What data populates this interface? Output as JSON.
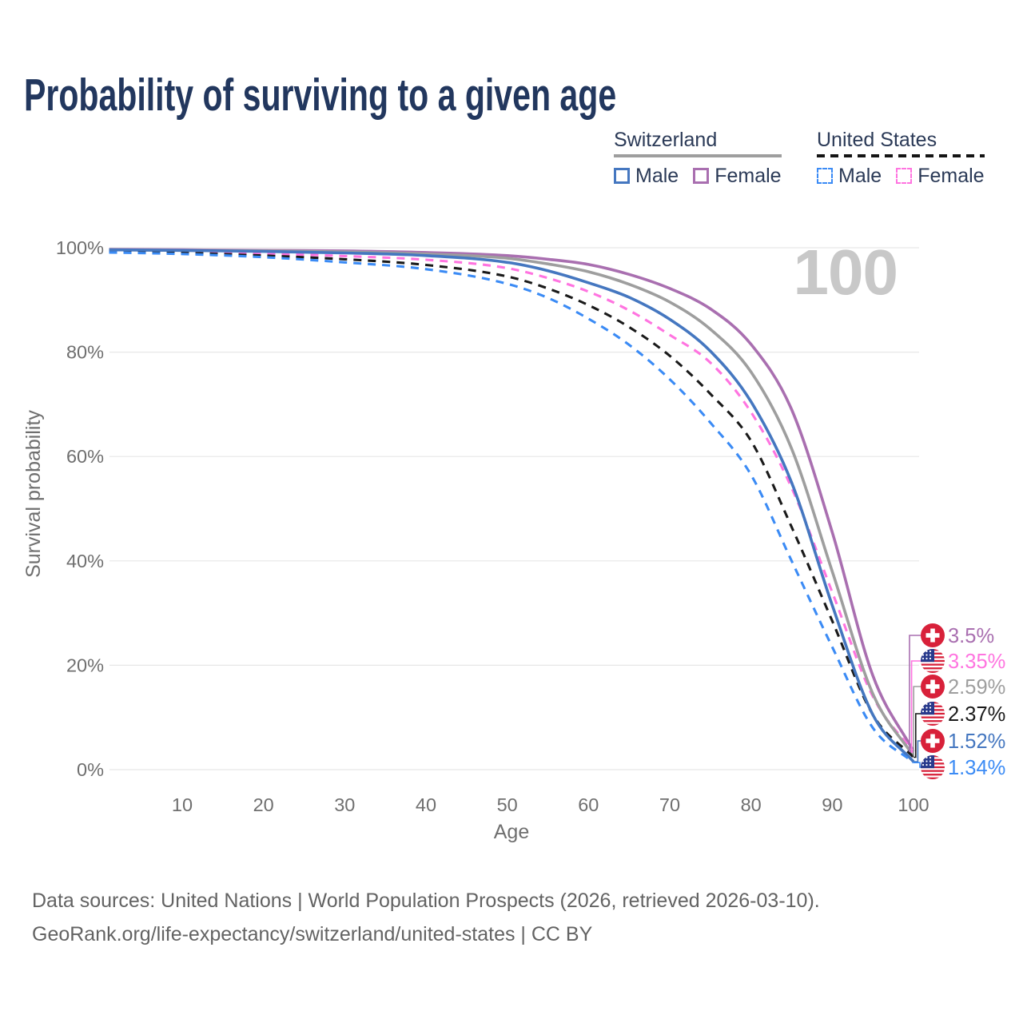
{
  "title": "Probability of surviving to a given age",
  "watermark": "100",
  "legend": {
    "groups": [
      {
        "label": "Switzerland",
        "line_style": "solid",
        "line_color": "#9e9e9e",
        "items": [
          {
            "label": "Male",
            "color": "#4577c0",
            "style": "solid"
          },
          {
            "label": "Female",
            "color": "#a96fb0",
            "style": "solid"
          }
        ]
      },
      {
        "label": "United States",
        "line_style": "dashed",
        "line_color": "#141414",
        "items": [
          {
            "label": "Male",
            "color": "#3b8bf5",
            "style": "dashed"
          },
          {
            "label": "Female",
            "color": "#ff74e0",
            "style": "dashed"
          }
        ]
      }
    ]
  },
  "chart_data": {
    "type": "line",
    "title": "Probability of surviving to a given age",
    "xlabel": "Age",
    "ylabel": "Survival probability",
    "xlim": [
      1,
      100
    ],
    "ylim": [
      0,
      100
    ],
    "grid": "horizontal",
    "x_ticks": [
      {
        "value": 10,
        "label": "10"
      },
      {
        "value": 20,
        "label": "20"
      },
      {
        "value": 30,
        "label": "30"
      },
      {
        "value": 40,
        "label": "40"
      },
      {
        "value": 50,
        "label": "50"
      },
      {
        "value": 60,
        "label": "60"
      },
      {
        "value": 70,
        "label": "70"
      },
      {
        "value": 80,
        "label": "80"
      },
      {
        "value": 90,
        "label": "90"
      },
      {
        "value": 100,
        "label": "100"
      }
    ],
    "y_ticks": [
      {
        "value": 100,
        "label": "100%"
      },
      {
        "value": 80,
        "label": "80%"
      },
      {
        "value": 60,
        "label": "60%"
      },
      {
        "value": 40,
        "label": "40%"
      },
      {
        "value": 20,
        "label": "20%"
      },
      {
        "value": 0,
        "label": "0%"
      }
    ],
    "x": [
      1,
      10,
      20,
      30,
      40,
      50,
      55,
      60,
      65,
      70,
      75,
      80,
      85,
      90,
      95,
      100
    ],
    "series": [
      {
        "key": "switzerland_female",
        "name": "Switzerland Female",
        "country": "Switzerland",
        "flag": "swiss",
        "style": "solid",
        "color": "#a96fb0",
        "end_label": "3.5%",
        "end_value": 3.5,
        "values": [
          99.7,
          99.6,
          99.5,
          99.4,
          99.1,
          98.5,
          97.8,
          96.8,
          94.9,
          92.2,
          88.3,
          81.5,
          69.0,
          45.5,
          18.0,
          3.5
        ]
      },
      {
        "key": "united_states_female",
        "name": "United States Female",
        "country": "United States",
        "flag": "us",
        "style": "dashed",
        "color": "#ff74e0",
        "end_label": "3.35%",
        "end_value": 3.35,
        "values": [
          99.4,
          99.2,
          98.9,
          98.4,
          97.7,
          96.1,
          94.2,
          91.6,
          88.0,
          83.3,
          78.0,
          68.5,
          54.0,
          34.0,
          14.0,
          3.35
        ]
      },
      {
        "key": "switzerland_all",
        "name": "Switzerland",
        "country": "Switzerland",
        "flag": "swiss",
        "style": "solid",
        "color": "#9e9e9e",
        "end_label": "2.59%",
        "end_value": 2.59,
        "values": [
          99.6,
          99.5,
          99.4,
          99.2,
          98.8,
          98.0,
          96.9,
          95.4,
          93.0,
          89.6,
          84.4,
          76.2,
          61.5,
          38.0,
          14.5,
          2.59
        ]
      },
      {
        "key": "united_states_all",
        "name": "United States",
        "country": "United States",
        "flag": "us",
        "style": "dashed",
        "color": "#1a1a1a",
        "end_label": "2.37%",
        "end_value": 2.37,
        "values": [
          99.2,
          99.0,
          98.5,
          97.8,
          96.7,
          94.5,
          92.2,
          89.0,
          84.8,
          79.3,
          72.0,
          63.0,
          46.5,
          28.5,
          10.5,
          2.37
        ]
      },
      {
        "key": "switzerland_male",
        "name": "Switzerland Male",
        "country": "Switzerland",
        "flag": "swiss",
        "style": "solid",
        "color": "#4577c0",
        "end_label": "1.52%",
        "end_value": 1.52,
        "values": [
          99.6,
          99.5,
          99.3,
          99.0,
          98.5,
          97.2,
          95.6,
          93.3,
          90.5,
          86.3,
          80.2,
          70.5,
          55.0,
          31.5,
          10.5,
          1.52
        ]
      },
      {
        "key": "united_states_male",
        "name": "United States Male",
        "country": "United States",
        "flag": "us",
        "style": "dashed",
        "color": "#3b8bf5",
        "end_label": "1.34%",
        "end_value": 1.34,
        "values": [
          99.1,
          98.8,
          98.2,
          97.2,
          95.9,
          93.1,
          90.4,
          86.4,
          81.4,
          74.8,
          66.5,
          56.5,
          40.0,
          23.5,
          8.0,
          1.34
        ]
      }
    ]
  },
  "colors": {
    "title": "#22375e",
    "axis_text": "#6f6f6f",
    "gridline": "#e7e7e7",
    "watermark": "#c8c8c8",
    "swiss_flag_red": "#d8213a",
    "us_flag_navy": "#283a8c",
    "us_flag_red": "#d8213a"
  },
  "footer": {
    "line1": "Data sources: United Nations | World Population Prospects (2026, retrieved 2026-03-10).",
    "line2": "GeoRank.org/life-expectancy/switzerland/united-states | CC BY"
  }
}
